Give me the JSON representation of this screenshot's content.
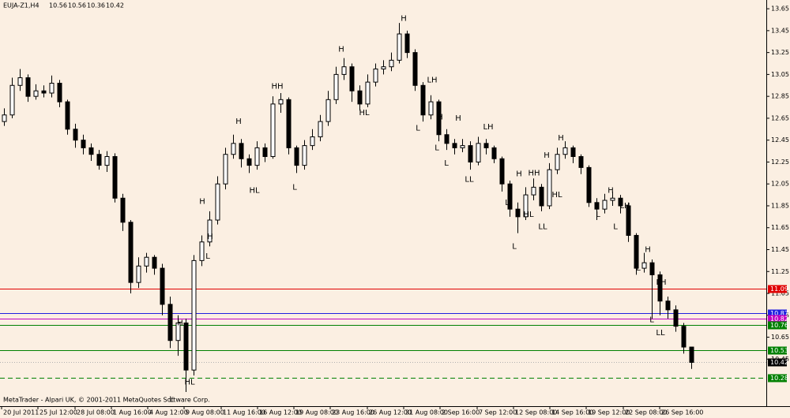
{
  "chart_data": {
    "type": "candlestick",
    "symbol": "EUJA-Z1,H4",
    "footer": "MetaTrader - Alpari UK, © 2001-2011 MetaQuotes Software Corp.",
    "open": [
      12.62,
      12.68,
      12.95,
      13.02,
      12.85,
      12.9,
      12.88,
      12.97,
      12.8,
      12.55,
      12.45,
      12.38,
      12.32,
      12.22,
      12.3,
      11.92,
      11.7,
      11.15,
      11.3,
      11.38,
      11.28,
      10.95,
      10.62,
      10.78,
      10.35,
      11.35,
      11.52,
      11.72,
      12.05,
      12.32,
      12.42,
      12.28,
      12.22,
      12.38,
      12.3,
      12.78,
      12.82,
      12.38,
      12.22,
      12.4,
      12.48,
      12.62,
      12.82,
      13.05,
      13.12,
      12.9,
      12.78,
      12.98,
      13.1,
      13.12,
      13.18,
      13.42,
      13.25,
      12.95,
      12.68,
      12.8,
      12.5,
      12.42,
      12.38,
      12.4,
      12.25,
      12.42,
      12.38,
      12.28,
      12.05,
      11.82,
      11.75,
      11.95,
      12.02,
      11.85,
      12.18,
      12.32,
      12.38,
      12.3,
      12.2,
      11.88,
      11.82,
      11.9,
      11.92,
      11.85,
      11.58,
      11.28,
      11.33,
      11.22,
      10.98,
      10.9,
      10.75,
      10.56
    ],
    "high": [
      12.74,
      13.02,
      13.1,
      13.05,
      12.96,
      12.95,
      13.04,
      13.0,
      12.82,
      12.6,
      12.5,
      12.42,
      12.36,
      12.35,
      12.33,
      11.96,
      11.72,
      11.38,
      11.42,
      11.4,
      11.32,
      11.02,
      10.85,
      10.82,
      11.4,
      11.58,
      11.8,
      12.12,
      12.38,
      12.5,
      12.46,
      12.32,
      12.44,
      12.42,
      12.85,
      12.88,
      12.84,
      12.4,
      12.45,
      12.55,
      12.68,
      12.9,
      13.12,
      13.2,
      13.15,
      12.95,
      13.05,
      13.15,
      13.18,
      13.25,
      13.52,
      13.45,
      13.28,
      12.98,
      12.86,
      12.82,
      12.55,
      12.46,
      12.46,
      12.44,
      12.48,
      12.46,
      12.4,
      12.3,
      12.08,
      11.88,
      12.02,
      12.1,
      12.05,
      12.24,
      12.38,
      12.44,
      12.4,
      12.32,
      12.22,
      11.92,
      11.96,
      11.98,
      11.95,
      11.88,
      11.6,
      11.42,
      11.36,
      11.25,
      11.02,
      10.94,
      10.78,
      10.56
    ],
    "low": [
      12.58,
      12.65,
      12.9,
      12.8,
      12.82,
      12.84,
      12.84,
      12.75,
      12.5,
      12.38,
      12.32,
      12.26,
      12.18,
      12.16,
      11.88,
      11.62,
      11.05,
      11.1,
      11.24,
      11.22,
      10.85,
      10.55,
      10.48,
      10.15,
      10.3,
      11.3,
      11.48,
      11.68,
      12.0,
      12.28,
      12.2,
      12.15,
      12.18,
      12.25,
      12.28,
      12.7,
      12.32,
      12.15,
      12.18,
      12.36,
      12.44,
      12.58,
      12.78,
      13.0,
      12.8,
      12.72,
      12.75,
      12.94,
      13.05,
      13.08,
      13.15,
      13.2,
      12.9,
      12.62,
      12.64,
      12.44,
      12.36,
      12.32,
      12.34,
      12.18,
      12.22,
      12.32,
      12.24,
      11.98,
      11.75,
      11.6,
      11.72,
      11.9,
      11.8,
      11.82,
      12.14,
      12.28,
      12.24,
      12.14,
      11.84,
      11.72,
      11.78,
      11.85,
      11.78,
      11.52,
      11.22,
      11.24,
      10.82,
      10.85,
      10.82,
      10.7,
      10.5,
      10.36
    ],
    "close": [
      12.68,
      12.95,
      13.02,
      12.85,
      12.9,
      12.88,
      12.97,
      12.8,
      12.55,
      12.45,
      12.38,
      12.32,
      12.22,
      12.3,
      11.92,
      11.7,
      11.15,
      11.3,
      11.38,
      11.28,
      10.95,
      10.62,
      10.78,
      10.35,
      11.35,
      11.52,
      11.72,
      12.05,
      12.32,
      12.42,
      12.28,
      12.22,
      12.38,
      12.3,
      12.78,
      12.82,
      12.38,
      12.22,
      12.4,
      12.48,
      12.62,
      12.82,
      13.05,
      13.12,
      12.9,
      12.78,
      12.98,
      13.1,
      13.12,
      13.18,
      13.42,
      13.25,
      12.95,
      12.68,
      12.8,
      12.5,
      12.42,
      12.38,
      12.4,
      12.25,
      12.42,
      12.38,
      12.28,
      12.05,
      11.82,
      11.75,
      11.95,
      12.02,
      11.85,
      12.18,
      12.32,
      12.38,
      12.3,
      12.2,
      11.88,
      11.82,
      11.9,
      11.92,
      11.85,
      11.58,
      11.28,
      11.33,
      11.22,
      10.98,
      10.9,
      10.75,
      10.56,
      10.42
    ],
    "ylim": [
      10.02,
      13.73
    ],
    "yticks": [
      13.65,
      13.45,
      13.25,
      13.05,
      12.85,
      12.65,
      12.45,
      12.25,
      12.05,
      11.85,
      11.65,
      11.45,
      11.25,
      11.05,
      10.85,
      10.65,
      10.45
    ],
    "xticks": [
      {
        "value": -0.3,
        "label": "20 Jul 2011"
      },
      {
        "value": 4.3,
        "label": "25 Jul 12:00"
      },
      {
        "value": 9,
        "label": "28 Jul 08:00"
      },
      {
        "value": 13.6,
        "label": "1 Aug 16:00"
      },
      {
        "value": 18.2,
        "label": "4 Aug 12:00"
      },
      {
        "value": 22.8,
        "label": "9 Aug 08:00"
      },
      {
        "value": 27.5,
        "label": "11 Aug 16:00"
      },
      {
        "value": 32.1,
        "label": "16 Aug 12:00"
      },
      {
        "value": 36.7,
        "label": "19 Aug 08:00"
      },
      {
        "value": 41.3,
        "label": "23 Aug 16:00"
      },
      {
        "value": 46,
        "label": "26 Aug 12:00"
      },
      {
        "value": 50.6,
        "label": "31 Aug 08:00"
      },
      {
        "value": 55.2,
        "label": "2 Sep 16:00"
      },
      {
        "value": 59.9,
        "label": "7 Sep 12:00"
      },
      {
        "value": 64.5,
        "label": "12 Sep 08:00"
      },
      {
        "value": 69.1,
        "label": "14 Sep 16:00"
      },
      {
        "value": 73.7,
        "label": "19 Sep 12:00"
      },
      {
        "value": 78.4,
        "label": "22 Sep 08:00"
      },
      {
        "value": 83,
        "label": "26 Sep 16:00"
      }
    ],
    "levels": [
      {
        "value": 11.09,
        "color": "#e00000",
        "dashed": false
      },
      {
        "value": 10.87,
        "color": "#2020e0",
        "dashed": false
      },
      {
        "value": 10.82,
        "color": "#c000c0",
        "dashed": false
      },
      {
        "value": 10.76,
        "color": "#008000",
        "dashed": false
      },
      {
        "value": 10.53,
        "color": "#008000",
        "dashed": false
      },
      {
        "value": 10.42,
        "color": "#000000",
        "dashed": false,
        "current": true
      },
      {
        "value": 10.28,
        "color": "#008000",
        "dashed": true
      }
    ],
    "annotations": [
      {
        "text": "H",
        "x": 50.6,
        "y": 13.56
      },
      {
        "text": "H",
        "x": 42.7,
        "y": 13.28
      },
      {
        "text": "HH",
        "x": 34.6,
        "y": 12.94
      },
      {
        "text": "H",
        "x": 29.7,
        "y": 12.62
      },
      {
        "text": "HL",
        "x": 31.7,
        "y": 11.99
      },
      {
        "text": "L",
        "x": 36.8,
        "y": 12.02
      },
      {
        "text": "H",
        "x": 25.1,
        "y": 11.89
      },
      {
        "text": "H",
        "x": 26.1,
        "y": 11.57
      },
      {
        "text": "L",
        "x": 25.8,
        "y": 11.39
      },
      {
        "text": "H",
        "x": 22.3,
        "y": 10.78
      },
      {
        "text": "HL",
        "x": 23.5,
        "y": 10.24
      },
      {
        "text": "L",
        "x": 21.2,
        "y": 10.08
      },
      {
        "text": "HL",
        "x": 45.6,
        "y": 12.7
      },
      {
        "text": "LH",
        "x": 54.2,
        "y": 13.0
      },
      {
        "text": "L",
        "x": 52.4,
        "y": 12.56
      },
      {
        "text": "H",
        "x": 55.2,
        "y": 12.66
      },
      {
        "text": "L",
        "x": 54.8,
        "y": 12.38
      },
      {
        "text": "H",
        "x": 57.5,
        "y": 12.65
      },
      {
        "text": "L",
        "x": 56,
        "y": 12.24
      },
      {
        "text": "LH",
        "x": 61.3,
        "y": 12.57
      },
      {
        "text": "LL",
        "x": 58.9,
        "y": 12.09
      },
      {
        "text": "H",
        "x": 70.5,
        "y": 12.47
      },
      {
        "text": "H",
        "x": 68.7,
        "y": 12.31
      },
      {
        "text": "HH",
        "x": 67.1,
        "y": 12.15
      },
      {
        "text": "H",
        "x": 65.2,
        "y": 12.14
      },
      {
        "text": "HL",
        "x": 70,
        "y": 11.95
      },
      {
        "text": "HL",
        "x": 66.4,
        "y": 11.77
      },
      {
        "text": "L",
        "x": 63.7,
        "y": 11.88
      },
      {
        "text": "LL",
        "x": 68.2,
        "y": 11.66
      },
      {
        "text": "L",
        "x": 64.6,
        "y": 11.48
      },
      {
        "text": "H",
        "x": 76.8,
        "y": 11.99
      },
      {
        "text": "LH",
        "x": 78.6,
        "y": 11.85
      },
      {
        "text": "L",
        "x": 75.2,
        "y": 11.77
      },
      {
        "text": "L",
        "x": 77.4,
        "y": 11.66
      },
      {
        "text": "H",
        "x": 81.5,
        "y": 11.45
      },
      {
        "text": "LH",
        "x": 83.2,
        "y": 11.15
      },
      {
        "text": "L",
        "x": 80.3,
        "y": 11.28
      },
      {
        "text": "L",
        "x": 82,
        "y": 10.81
      },
      {
        "text": "LL",
        "x": 83.1,
        "y": 10.69
      }
    ]
  }
}
